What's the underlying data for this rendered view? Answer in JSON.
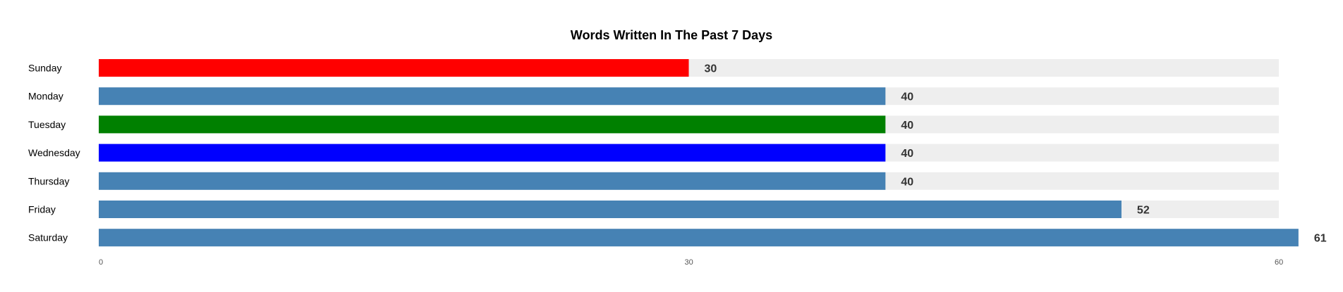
{
  "chart_data": {
    "type": "bar",
    "orientation": "horizontal",
    "title": "Words Written In The Past 7 Days",
    "xlabel": "",
    "ylabel": "",
    "categories": [
      "Sunday",
      "Monday",
      "Tuesday",
      "Wednesday",
      "Thursday",
      "Friday",
      "Saturday"
    ],
    "values": [
      30,
      40,
      40,
      40,
      40,
      52,
      61
    ],
    "bar_colors": [
      "#ff0000",
      "#4682b4",
      "#008000",
      "#0000ff",
      "#4682b4",
      "#4682b4",
      "#4682b4"
    ],
    "track_color": "#eeeeee",
    "track_max": 60,
    "xlim": [
      0,
      60
    ],
    "x_ticks": [
      0,
      30,
      60
    ],
    "grid": false,
    "legend": "none"
  }
}
